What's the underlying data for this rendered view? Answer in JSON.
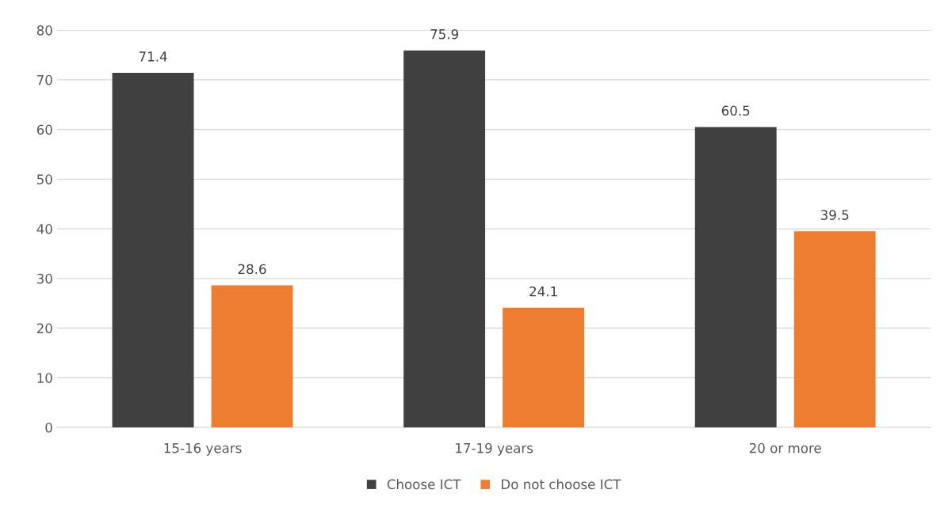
{
  "chart_data": {
    "type": "bar",
    "categories": [
      "15-16 years",
      "17-19 years",
      "20 or more"
    ],
    "series": [
      {
        "name": "Choose ICT",
        "color": "#404040",
        "values": [
          71.4,
          75.9,
          60.5
        ]
      },
      {
        "name": "Do not choose ICT",
        "color": "#ed7d31",
        "values": [
          28.6,
          24.1,
          39.5
        ]
      }
    ],
    "ylim": [
      0,
      80
    ],
    "yticks": [
      0,
      10,
      20,
      30,
      40,
      50,
      60,
      70,
      80
    ],
    "grid": "y",
    "legend": "bottom",
    "data_labels": true
  }
}
